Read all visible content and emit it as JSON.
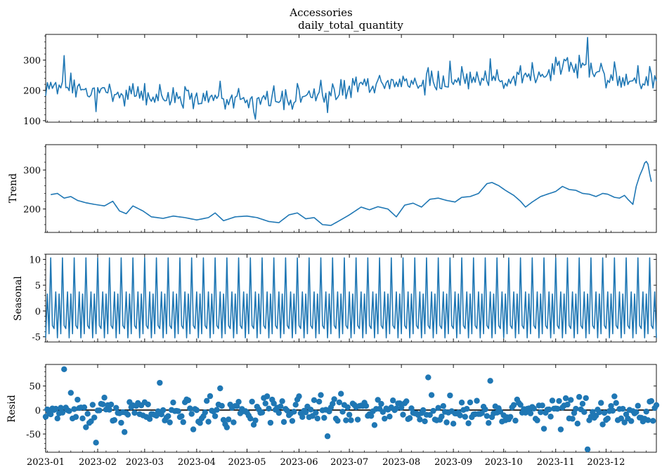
{
  "figure": {
    "title": "Accessories",
    "subtitle": "daily_total_quantity",
    "colors": {
      "series": "#1f77b4",
      "zero_line": "#000000",
      "frame": "#000000"
    }
  },
  "chart_data": [
    {
      "type": "line",
      "panel": "observed",
      "ylabel": "",
      "ylim": [
        95,
        385
      ],
      "yticks": [
        100,
        200,
        300
      ],
      "x_range": [
        "2023-01-01",
        "2023-12-31"
      ],
      "xtick_labels": [
        "2023-01",
        "2023-02",
        "2023-03",
        "2023-04",
        "2023-05",
        "2023-06",
        "2023-07",
        "2023-08",
        "2023-09",
        "2023-10",
        "2023-11",
        "2023-12"
      ],
      "monthly_level": [
        215,
        195,
        180,
        180,
        165,
        180,
        215,
        225,
        245,
        235,
        290,
        240
      ],
      "y_extremes": {
        "max": 375,
        "max_date": "2023-11-20",
        "min": 105,
        "min_date": "2023-05-06",
        "first_peak": 315,
        "first_peak_date": "2023-01-12"
      }
    },
    {
      "type": "line",
      "panel": "trend",
      "ylabel": "Trend",
      "ylim": [
        140,
        365
      ],
      "yticks": [
        200,
        300
      ],
      "x_range": [
        "2023-01-04",
        "2023-12-28"
      ],
      "points": [
        [
          "2023-01-04",
          237
        ],
        [
          "2023-01-08",
          240
        ],
        [
          "2023-01-12",
          228
        ],
        [
          "2023-01-16",
          232
        ],
        [
          "2023-01-20",
          222
        ],
        [
          "2023-01-25",
          216
        ],
        [
          "2023-01-30",
          212
        ],
        [
          "2023-02-05",
          208
        ],
        [
          "2023-02-10",
          220
        ],
        [
          "2023-02-14",
          195
        ],
        [
          "2023-02-18",
          188
        ],
        [
          "2023-02-22",
          208
        ],
        [
          "2023-02-28",
          195
        ],
        [
          "2023-03-05",
          180
        ],
        [
          "2023-03-12",
          176
        ],
        [
          "2023-03-18",
          182
        ],
        [
          "2023-03-25",
          178
        ],
        [
          "2023-04-01",
          172
        ],
        [
          "2023-04-08",
          178
        ],
        [
          "2023-04-12",
          190
        ],
        [
          "2023-04-17",
          170
        ],
        [
          "2023-04-24",
          180
        ],
        [
          "2023-05-01",
          182
        ],
        [
          "2023-05-07",
          178
        ],
        [
          "2023-05-14",
          168
        ],
        [
          "2023-05-20",
          165
        ],
        [
          "2023-05-26",
          185
        ],
        [
          "2023-05-31",
          190
        ],
        [
          "2023-06-05",
          175
        ],
        [
          "2023-06-10",
          178
        ],
        [
          "2023-06-15",
          160
        ],
        [
          "2023-06-20",
          158
        ],
        [
          "2023-06-25",
          170
        ],
        [
          "2023-07-01",
          185
        ],
        [
          "2023-07-08",
          205
        ],
        [
          "2023-07-13",
          198
        ],
        [
          "2023-07-18",
          206
        ],
        [
          "2023-07-24",
          200
        ],
        [
          "2023-07-29",
          180
        ],
        [
          "2023-08-03",
          210
        ],
        [
          "2023-08-08",
          215
        ],
        [
          "2023-08-13",
          205
        ],
        [
          "2023-08-18",
          225
        ],
        [
          "2023-08-23",
          228
        ],
        [
          "2023-08-28",
          222
        ],
        [
          "2023-09-02",
          218
        ],
        [
          "2023-09-06",
          230
        ],
        [
          "2023-09-11",
          232
        ],
        [
          "2023-09-16",
          240
        ],
        [
          "2023-09-21",
          265
        ],
        [
          "2023-09-24",
          268
        ],
        [
          "2023-09-28",
          260
        ],
        [
          "2023-10-02",
          248
        ],
        [
          "2023-10-07",
          235
        ],
        [
          "2023-10-11",
          220
        ],
        [
          "2023-10-14",
          205
        ],
        [
          "2023-10-18",
          218
        ],
        [
          "2023-10-23",
          232
        ],
        [
          "2023-10-27",
          238
        ],
        [
          "2023-11-01",
          245
        ],
        [
          "2023-11-05",
          258
        ],
        [
          "2023-11-09",
          250
        ],
        [
          "2023-11-13",
          248
        ],
        [
          "2023-11-17",
          240
        ],
        [
          "2023-11-21",
          238
        ],
        [
          "2023-11-25",
          232
        ],
        [
          "2023-11-29",
          240
        ],
        [
          "2023-12-02",
          238
        ],
        [
          "2023-12-06",
          230
        ],
        [
          "2023-12-09",
          228
        ],
        [
          "2023-12-12",
          235
        ],
        [
          "2023-12-14",
          225
        ],
        [
          "2023-12-17",
          212
        ],
        [
          "2023-12-19",
          258
        ],
        [
          "2023-12-21",
          285
        ],
        [
          "2023-12-23",
          305
        ],
        [
          "2023-12-24",
          318
        ],
        [
          "2023-12-25",
          322
        ],
        [
          "2023-12-26",
          315
        ],
        [
          "2023-12-27",
          290
        ],
        [
          "2023-12-28",
          270
        ]
      ]
    },
    {
      "type": "line",
      "panel": "seasonal",
      "ylabel": "Seasonal",
      "ylim": [
        -6,
        11
      ],
      "yticks": [
        -5,
        0,
        5,
        10
      ],
      "x_range": [
        "2023-01-01",
        "2023-12-31"
      ],
      "weekly_pattern": [
        -5.2,
        3.3,
        -4.4,
        10.3,
        -2.8,
        -3.4,
        3.7
      ]
    },
    {
      "type": "scatter",
      "panel": "resid",
      "ylabel": "Resid",
      "ylim": [
        -88,
        95
      ],
      "yticks": [
        -50,
        0,
        50
      ],
      "zero_line": 0,
      "x_range": [
        "2023-01-01",
        "2023-12-31"
      ],
      "extremes": {
        "max": 85,
        "max_date": "2023-01-12",
        "min": -82,
        "min_date": "2023-11-20"
      }
    }
  ]
}
